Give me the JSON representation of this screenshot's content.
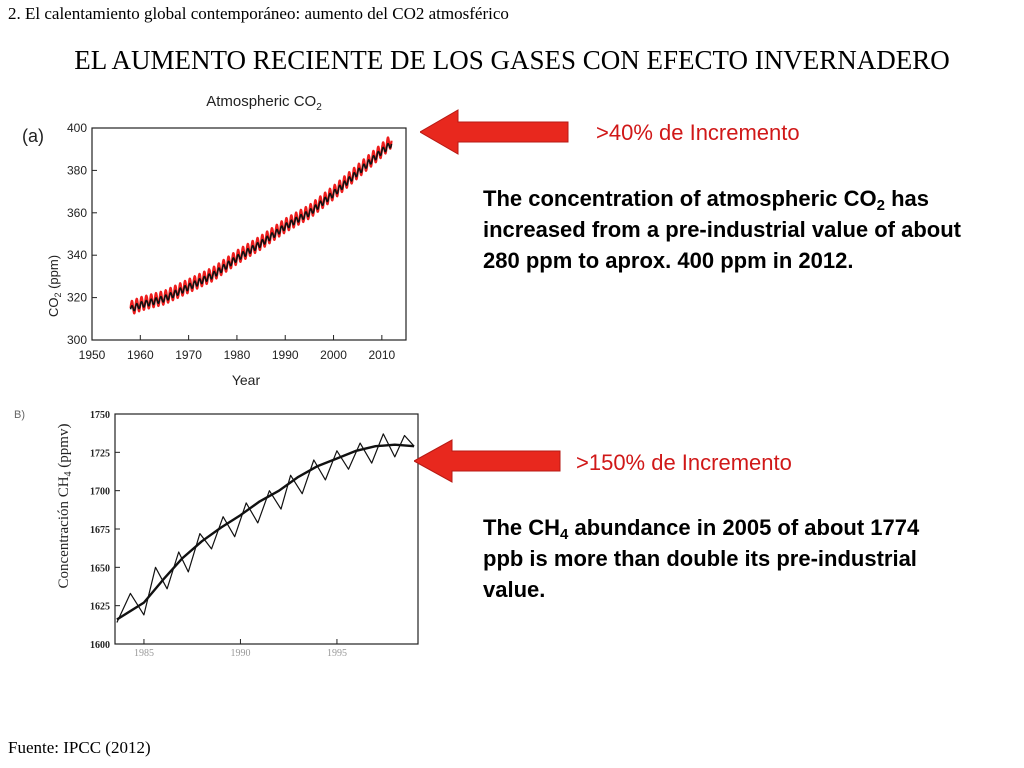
{
  "header": {
    "section": "2. El calentamiento global contemporáneo: aumento del CO2 atmosférico",
    "title": "EL AUMENTO RECIENTE DE LOS GASES CON EFECTO INVERNADERO",
    "source": "Fuente: IPCC (2012)"
  },
  "co2_panel": {
    "increase_label": ">40% de Incremento",
    "text_before": "The concentration of atmospheric CO",
    "text_sub": "2",
    "text_after": " has increased from a pre-industrial value of about 280 ppm to aprox. 400 ppm in 2012."
  },
  "ch4_panel": {
    "increase_label": ">150% de Incremento",
    "text_before": "The CH",
    "text_sub": "4",
    "text_after": " abundance in 2005 of about 1774 ppb is more than double its pre-industrial value."
  },
  "colors": {
    "accent_red": "#e8281e",
    "red_series": "#ee1c1c",
    "black_series": "#111111"
  },
  "chart_data": [
    {
      "type": "line",
      "panel_label": "(a)",
      "title": "Atmospheric CO",
      "title_sub": "2",
      "xlabel": "Year",
      "ylabel": "CO",
      "ylabel_sub": "2",
      "ylabel_suffix": " (ppm)",
      "xlim": [
        1950,
        2015
      ],
      "ylim": [
        300,
        400
      ],
      "xticks": [
        "1950",
        "1960",
        "1970",
        "1980",
        "1990",
        "2000",
        "2010"
      ],
      "yticks": [
        "300",
        "320",
        "340",
        "360",
        "380",
        "400"
      ],
      "grid": false,
      "series": [
        {
          "color": "#ee1c1c",
          "x": [
            1958,
            1960,
            1965,
            1970,
            1975,
            1980,
            1985,
            1990,
            1995,
            2000,
            2005,
            2010,
            2012
          ],
          "y": [
            315,
            317,
            320,
            325.5,
            331,
            339,
            346,
            354,
            360.5,
            369.5,
            379.5,
            389.5,
            394
          ],
          "seasonal_amplitude": 3.2
        },
        {
          "color": "#111111",
          "x": [
            1958,
            1960,
            1965,
            1970,
            1975,
            1980,
            1985,
            1990,
            1995,
            2000,
            2005,
            2010,
            2012
          ],
          "y": [
            314.5,
            316.5,
            319.5,
            325,
            330.5,
            338.5,
            345.5,
            353.5,
            360,
            369,
            379,
            389,
            392.5
          ],
          "seasonal_amplitude": 1.4
        }
      ]
    },
    {
      "type": "line",
      "panel_label": "B)",
      "title": "",
      "xlabel": "",
      "ylabel": "Concentración CH",
      "ylabel_sub": "4",
      "ylabel_suffix": " (ppmv)",
      "xlim": [
        1983.5,
        1999.2
      ],
      "ylim": [
        1600,
        1750
      ],
      "xticks": [
        "1985",
        "1990",
        "1995"
      ],
      "yticks": [
        "1600",
        "1625",
        "1650",
        "1675",
        "1700",
        "1725",
        "1750"
      ],
      "grid": false,
      "series": [
        {
          "name": "",
          "color": "#111111",
          "x": [
            1983.6,
            1985,
            1986,
            1987,
            1988,
            1989,
            1990,
            1991,
            1992,
            1993,
            1994,
            1995,
            1996,
            1997,
            1998,
            1999
          ],
          "y": [
            1616,
            1627,
            1642,
            1656,
            1667,
            1676,
            1684,
            1693,
            1700,
            1709,
            1716,
            1721,
            1726,
            1729,
            1730,
            1729
          ]
        },
        {
          "name": "",
          "color": "#111111",
          "x": [
            1983.6,
            1984.3,
            1985,
            1985.6,
            1986.2,
            1986.8,
            1987.3,
            1987.9,
            1988.5,
            1989.1,
            1989.7,
            1990.3,
            1990.9,
            1991.5,
            1992.1,
            1992.6,
            1993.2,
            1993.8,
            1994.4,
            1995,
            1995.6,
            1996.2,
            1996.8,
            1997.4,
            1998,
            1998.5,
            1999
          ],
          "y": [
            1614,
            1633,
            1619,
            1650,
            1636,
            1660,
            1647,
            1672,
            1662,
            1683,
            1670,
            1692,
            1679,
            1700,
            1688,
            1710,
            1698,
            1720,
            1707,
            1726,
            1714,
            1731,
            1718,
            1737,
            1722,
            1736,
            1729
          ]
        }
      ]
    }
  ]
}
